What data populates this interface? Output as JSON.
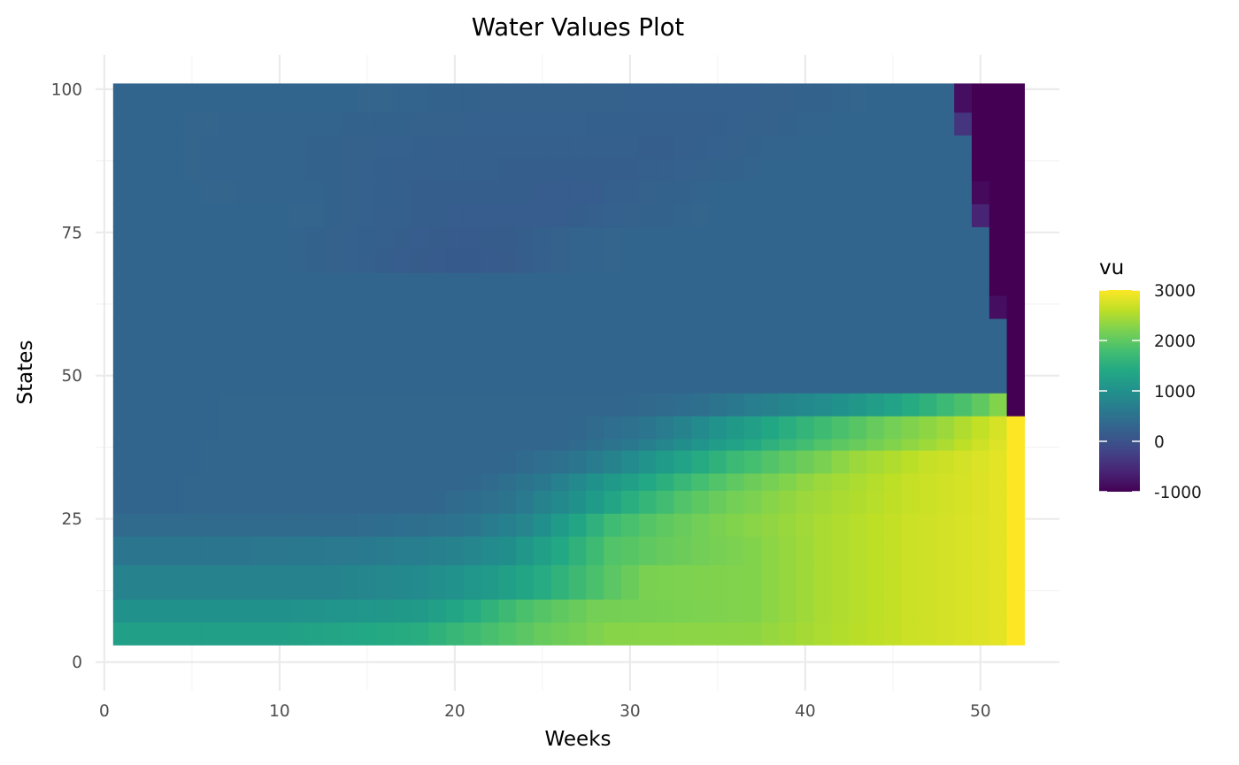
{
  "chart_data": {
    "type": "heatmap",
    "title": "Water Values Plot",
    "xlabel": "Weeks",
    "ylabel": "States",
    "xlim": [
      -0.5,
      54.5
    ],
    "ylim": [
      -5,
      106
    ],
    "x_ticks": [
      0,
      10,
      20,
      30,
      40,
      50
    ],
    "y_ticks": [
      0,
      25,
      50,
      75,
      100
    ],
    "grid": true,
    "legend": {
      "title": "vu",
      "position": "right",
      "scale": "viridis",
      "range": [
        -1000,
        3000
      ],
      "ticks": [
        3000,
        2000,
        1000,
        0,
        -1000
      ]
    },
    "weeks": [
      1,
      52
    ],
    "state_band_edges": [
      3,
      7,
      11,
      17,
      22,
      26,
      30,
      33,
      37,
      39,
      43,
      47,
      50,
      60,
      64,
      68,
      72,
      76,
      80,
      84,
      88,
      92,
      96,
      101
    ],
    "value_encoding": "each row value = mid-state of the band; values by week via breakpoints [week, vu]",
    "rows": [
      {
        "state": 5,
        "points": [
          [
            1,
            1250
          ],
          [
            10,
            1250
          ],
          [
            18,
            1480
          ],
          [
            22,
            1820
          ],
          [
            25,
            2050
          ],
          [
            29,
            2280
          ],
          [
            37,
            2320
          ],
          [
            41,
            2500
          ],
          [
            46,
            2680
          ],
          [
            51,
            2830
          ],
          [
            52,
            3000
          ]
        ]
      },
      {
        "state": 9,
        "points": [
          [
            1,
            1000
          ],
          [
            10,
            1000
          ],
          [
            18,
            1150
          ],
          [
            21,
            1450
          ],
          [
            24,
            1850
          ],
          [
            28,
            2150
          ],
          [
            37,
            2250
          ],
          [
            41,
            2480
          ],
          [
            46,
            2680
          ],
          [
            51,
            2830
          ],
          [
            52,
            3000
          ]
        ]
      },
      {
        "state": 14,
        "points": [
          [
            1,
            760
          ],
          [
            12,
            760
          ],
          [
            18,
            900
          ],
          [
            22,
            1150
          ],
          [
            25,
            1450
          ],
          [
            28,
            1850
          ],
          [
            31,
            2200
          ],
          [
            37,
            2250
          ],
          [
            41,
            2480
          ],
          [
            46,
            2680
          ],
          [
            51,
            2830
          ],
          [
            52,
            3000
          ]
        ]
      },
      {
        "state": 19.5,
        "points": [
          [
            1,
            550
          ],
          [
            5,
            550
          ],
          [
            14,
            620
          ],
          [
            19,
            720
          ],
          [
            23,
            950
          ],
          [
            26,
            1400
          ],
          [
            29,
            1900
          ],
          [
            33,
            2100
          ],
          [
            37,
            2250
          ],
          [
            41,
            2480
          ],
          [
            46,
            2680
          ],
          [
            51,
            2830
          ],
          [
            52,
            3000
          ]
        ]
      },
      {
        "state": 24,
        "points": [
          [
            1,
            380
          ],
          [
            15,
            400
          ],
          [
            20,
            500
          ],
          [
            24,
            800
          ],
          [
            27,
            1350
          ],
          [
            29,
            1750
          ],
          [
            32,
            2000
          ],
          [
            35,
            2200
          ],
          [
            41,
            2480
          ],
          [
            46,
            2680
          ],
          [
            51,
            2830
          ],
          [
            52,
            3000
          ]
        ]
      },
      {
        "state": 28,
        "points": [
          [
            1,
            300
          ],
          [
            19,
            320
          ],
          [
            23,
            520
          ],
          [
            27,
            1000
          ],
          [
            30,
            1500
          ],
          [
            33,
            1900
          ],
          [
            36,
            2150
          ],
          [
            40,
            2400
          ],
          [
            46,
            2650
          ],
          [
            51,
            2830
          ],
          [
            52,
            3000
          ]
        ]
      },
      {
        "state": 31.5,
        "points": [
          [
            1,
            300
          ],
          [
            21,
            320
          ],
          [
            25,
            600
          ],
          [
            28,
            1000
          ],
          [
            31,
            1400
          ],
          [
            34,
            1800
          ],
          [
            37,
            2100
          ],
          [
            41,
            2400
          ],
          [
            46,
            2650
          ],
          [
            51,
            2830
          ],
          [
            52,
            3000
          ]
        ]
      },
      {
        "state": 35,
        "points": [
          [
            1,
            300
          ],
          [
            23,
            320
          ],
          [
            27,
            550
          ],
          [
            30,
            900
          ],
          [
            33,
            1300
          ],
          [
            36,
            1700
          ],
          [
            39,
            2000
          ],
          [
            43,
            2400
          ],
          [
            47,
            2650
          ],
          [
            51,
            2830
          ],
          [
            52,
            3000
          ]
        ]
      },
      {
        "state": 38,
        "points": [
          [
            1,
            300
          ],
          [
            26,
            320
          ],
          [
            30,
            600
          ],
          [
            33,
            950
          ],
          [
            36,
            1300
          ],
          [
            38,
            1550
          ],
          [
            41,
            1900
          ],
          [
            45,
            2250
          ],
          [
            48,
            2500
          ],
          [
            51,
            2800
          ],
          [
            52,
            3000
          ]
        ]
      },
      {
        "state": 41,
        "points": [
          [
            1,
            300
          ],
          [
            27,
            320
          ],
          [
            31,
            550
          ],
          [
            34,
            900
          ],
          [
            37,
            1250
          ],
          [
            39,
            1500
          ],
          [
            42,
            1850
          ],
          [
            45,
            2150
          ],
          [
            48,
            2400
          ],
          [
            51,
            2750
          ],
          [
            52,
            3000
          ]
        ]
      },
      {
        "state": 45,
        "points": [
          [
            1,
            300
          ],
          [
            30,
            320
          ],
          [
            34,
            450
          ],
          [
            38,
            750
          ],
          [
            42,
            1000
          ],
          [
            45,
            1300
          ],
          [
            48,
            1700
          ],
          [
            50,
            2000
          ],
          [
            51,
            2250
          ],
          [
            52,
            -1000
          ]
        ]
      },
      {
        "state": 48.5,
        "points": [
          [
            1,
            300
          ],
          [
            51,
            300
          ],
          [
            52,
            -1000
          ]
        ]
      },
      {
        "state": 55,
        "points": [
          [
            1,
            300
          ],
          [
            51,
            300
          ],
          [
            52,
            -1000
          ]
        ]
      },
      {
        "state": 62,
        "points": [
          [
            1,
            300
          ],
          [
            50,
            300
          ],
          [
            51,
            -850
          ],
          [
            52,
            -1000
          ]
        ]
      },
      {
        "state": 66,
        "points": [
          [
            1,
            300
          ],
          [
            50,
            300
          ],
          [
            51,
            -1000
          ],
          [
            52,
            -1000
          ]
        ]
      },
      {
        "state": 70,
        "points": [
          [
            1,
            300
          ],
          [
            10,
            300
          ],
          [
            20,
            120
          ],
          [
            23,
            150
          ],
          [
            27,
            280
          ],
          [
            32,
            300
          ],
          [
            50,
            300
          ],
          [
            51,
            -1000
          ],
          [
            52,
            -1000
          ]
        ]
      },
      {
        "state": 74,
        "points": [
          [
            1,
            300
          ],
          [
            10,
            300
          ],
          [
            20,
            140
          ],
          [
            23,
            160
          ],
          [
            27,
            280
          ],
          [
            32,
            300
          ],
          [
            50,
            300
          ],
          [
            51,
            -1000
          ],
          [
            52,
            -1000
          ]
        ]
      },
      {
        "state": 78,
        "points": [
          [
            1,
            300
          ],
          [
            12,
            290
          ],
          [
            18,
            180
          ],
          [
            26,
            170
          ],
          [
            30,
            250
          ],
          [
            35,
            300
          ],
          [
            49,
            300
          ],
          [
            50,
            -600
          ],
          [
            51,
            -1000
          ],
          [
            52,
            -1000
          ]
        ]
      },
      {
        "state": 82,
        "points": [
          [
            1,
            300
          ],
          [
            12,
            280
          ],
          [
            18,
            190
          ],
          [
            28,
            170
          ],
          [
            31,
            240
          ],
          [
            35,
            300
          ],
          [
            49,
            300
          ],
          [
            50,
            -900
          ],
          [
            51,
            -1000
          ],
          [
            52,
            -1000
          ]
        ]
      },
      {
        "state": 86,
        "points": [
          [
            1,
            300
          ],
          [
            12,
            270
          ],
          [
            18,
            200
          ],
          [
            30,
            180
          ],
          [
            34,
            240
          ],
          [
            38,
            300
          ],
          [
            49,
            300
          ],
          [
            50,
            -1000
          ],
          [
            51,
            -1000
          ],
          [
            52,
            -1000
          ]
        ]
      },
      {
        "state": 90,
        "points": [
          [
            1,
            300
          ],
          [
            12,
            270
          ],
          [
            18,
            220
          ],
          [
            32,
            190
          ],
          [
            36,
            250
          ],
          [
            40,
            300
          ],
          [
            49,
            300
          ],
          [
            50,
            -1000
          ],
          [
            51,
            -1000
          ],
          [
            52,
            -1000
          ]
        ]
      },
      {
        "state": 94,
        "points": [
          [
            1,
            300
          ],
          [
            14,
            270
          ],
          [
            20,
            240
          ],
          [
            34,
            210
          ],
          [
            38,
            250
          ],
          [
            42,
            300
          ],
          [
            48,
            300
          ],
          [
            49,
            -400
          ],
          [
            50,
            -1000
          ],
          [
            52,
            -1000
          ]
        ]
      },
      {
        "state": 98.5,
        "points": [
          [
            1,
            300
          ],
          [
            16,
            290
          ],
          [
            22,
            250
          ],
          [
            36,
            230
          ],
          [
            40,
            260
          ],
          [
            44,
            300
          ],
          [
            48,
            300
          ],
          [
            49,
            -850
          ],
          [
            50,
            -1000
          ],
          [
            52,
            -1000
          ]
        ]
      }
    ]
  }
}
